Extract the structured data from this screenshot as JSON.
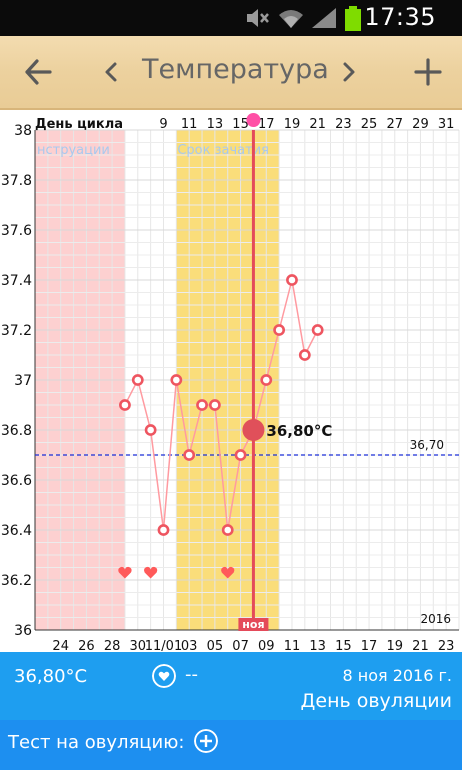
{
  "status_bar": {
    "time": "17:35",
    "icons": [
      "mute-icon",
      "wifi-icon",
      "signal-icon",
      "battery-icon"
    ]
  },
  "header": {
    "title": "Температура",
    "icons": [
      "back-arrow-icon",
      "chevron-left-icon",
      "chevron-right-icon",
      "plus-icon"
    ]
  },
  "chart_data": {
    "type": "line",
    "top_axis_label": "День цикла",
    "top_ticks": [
      "9",
      "11",
      "13",
      "15",
      "17",
      "19",
      "21",
      "23",
      "25",
      "27",
      "29",
      "31"
    ],
    "top_tick_days": [
      9,
      11,
      13,
      15,
      17,
      19,
      21,
      23,
      25,
      27,
      29,
      31
    ],
    "bottom_ticks": [
      "24",
      "26",
      "28",
      "30",
      "11/01",
      "03",
      "05",
      "07",
      "09",
      "11",
      "13",
      "15",
      "17",
      "19",
      "21",
      "23"
    ],
    "bottom_tick_dates": [
      "2016-10-24",
      "2016-10-26",
      "2016-10-28",
      "2016-10-30",
      "2016-11-01",
      "2016-11-03",
      "2016-11-05",
      "2016-11-07",
      "2016-11-09",
      "2016-11-11",
      "2016-11-13",
      "2016-11-15",
      "2016-11-17",
      "2016-11-19",
      "2016-11-21",
      "2016-11-23"
    ],
    "y_ticks": [
      "38",
      "37.8",
      "37.6",
      "37.4",
      "37.2",
      "37",
      "36.8",
      "36.6",
      "36.4",
      "36.2",
      "36"
    ],
    "ylim": [
      36,
      38
    ],
    "xlim": [
      "2016-10-22",
      "2016-11-24"
    ],
    "bands": [
      {
        "label": "нструации",
        "from": "2016-10-22",
        "to": "2016-10-28",
        "color": "#fdd0d0",
        "text_color": "#a9c9ee"
      },
      {
        "label": "Срок зачатия",
        "from": "2016-11-02",
        "to": "2016-11-09",
        "color": "#fadd7a",
        "text_color": "#a9c9ee"
      }
    ],
    "series": [
      {
        "x": [
          "2016-10-29",
          "2016-10-30",
          "2016-10-31",
          "2016-11-01",
          "2016-11-02",
          "2016-11-03",
          "2016-11-04",
          "2016-11-05",
          "2016-11-06",
          "2016-11-07",
          "2016-11-08",
          "2016-11-09",
          "2016-11-10",
          "2016-11-11",
          "2016-11-12",
          "2016-11-13"
        ],
        "y": [
          36.9,
          37.0,
          36.8,
          36.4,
          37.0,
          36.7,
          36.9,
          36.9,
          36.4,
          36.7,
          36.8,
          37.0,
          37.2,
          37.4,
          37.1,
          37.2
        ],
        "color": "#ff9aa0",
        "marker_color": "#ee5560"
      }
    ],
    "selected": {
      "x": "2016-11-08",
      "y": 36.8,
      "label": "36,80°C",
      "color": "#e0505a"
    },
    "ovulation_line": {
      "x": "2016-11-08",
      "color": "#e44a5a",
      "month_label": "ноя"
    },
    "coverline": {
      "y": 36.7,
      "label": "36,70",
      "color": "#1a2fd8"
    },
    "hearts": [
      "2016-10-29",
      "2016-10-31",
      "2016-11-06"
    ],
    "heart_color": "#ff5a5a",
    "year_label": "2016"
  },
  "info_bar": {
    "temperature": "36,80°C",
    "intercourse_value": "--",
    "date": "8 ноя 2016 г.",
    "phase": "День овуляции"
  },
  "test_bar": {
    "label": "Тест на овуляцию:"
  }
}
